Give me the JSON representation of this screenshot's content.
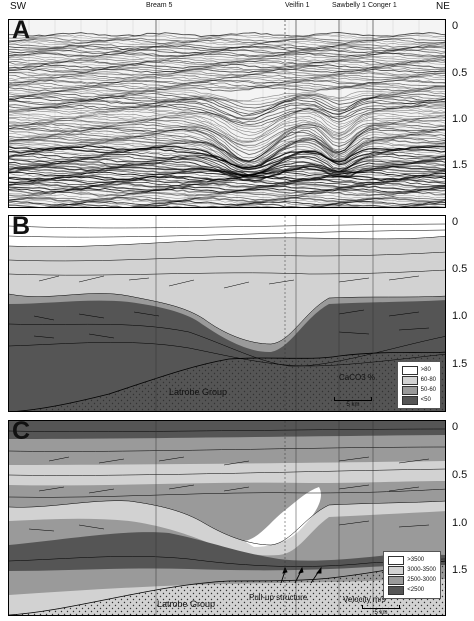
{
  "header": {
    "left": "SW",
    "right": "NE",
    "wells": [
      "Bream 5",
      "Veilfin 1",
      "Sawbelly 1",
      "Conger 1"
    ]
  },
  "panels": [
    {
      "label": "A"
    },
    {
      "label": "B",
      "annotation": "Latrobe Group",
      "legend": {
        "title": "CaCO3 %",
        "items": [
          ">80",
          "60-80",
          "50-60",
          "<50"
        ],
        "colors": [
          "#ffffff",
          "#d2d2d2",
          "#9a9a9a",
          "#555555"
        ]
      },
      "scale": "5 km"
    },
    {
      "label": "C",
      "annotation": "Latrobe Group",
      "annotation2": "Pull-up structure",
      "legend": {
        "title": "Velocity m/s",
        "items": [
          ">3500",
          "3000-3500",
          "2500-3000",
          "<2500"
        ],
        "colors": [
          "#ffffff",
          "#d2d2d2",
          "#9a9a9a",
          "#555555"
        ]
      },
      "scale": "5 km"
    }
  ],
  "axis_ticks": [
    "0",
    "0.5",
    "1.0",
    "1.5"
  ]
}
